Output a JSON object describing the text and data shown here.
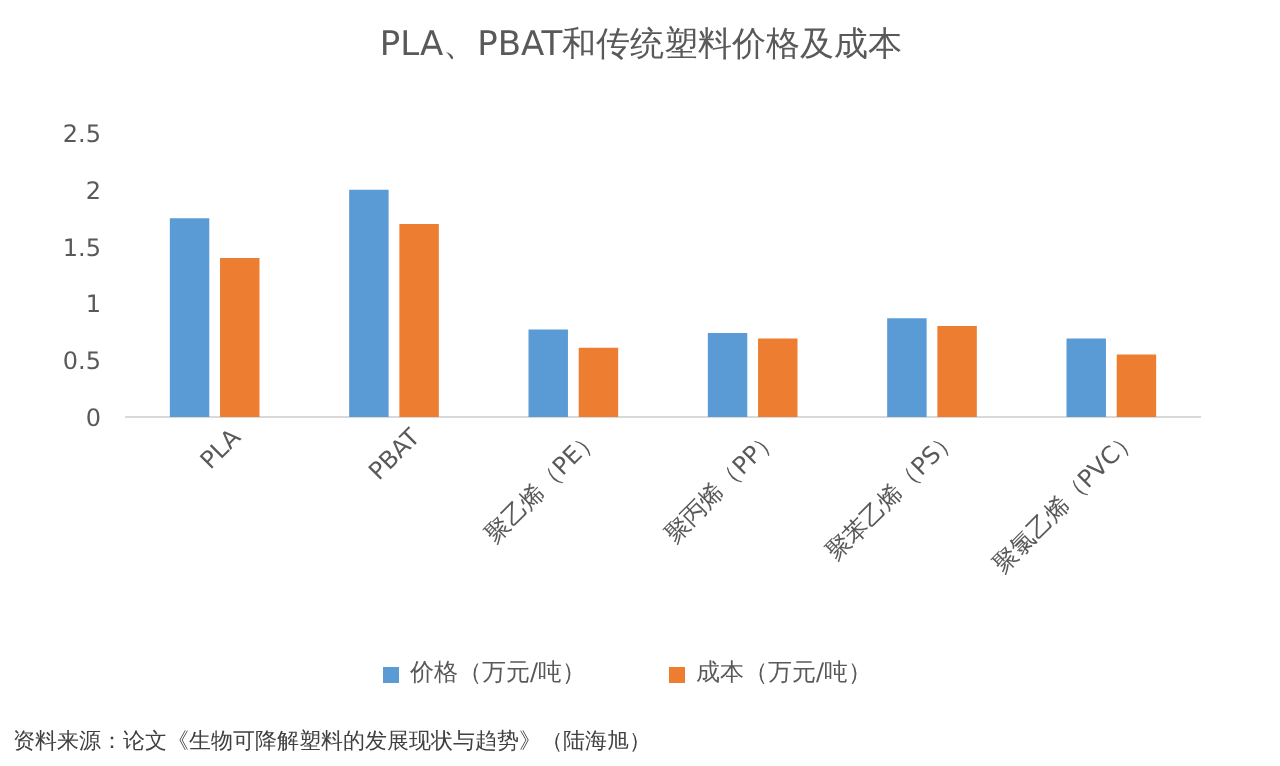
{
  "chart_data": {
    "type": "bar",
    "title": "PLA、PBAT和传统塑料价格及成本",
    "categories": [
      "PLA",
      "PBAT",
      "聚乙烯（PE）",
      "聚丙烯（PP）",
      "聚苯乙烯（PS）",
      "聚氯乙烯（PVC）"
    ],
    "series": [
      {
        "name": "价格（万元/吨）",
        "color": "#5b9bd5",
        "values": [
          1.75,
          2.0,
          0.77,
          0.74,
          0.87,
          0.69
        ]
      },
      {
        "name": "成本（万元/吨）",
        "color": "#ed7d31",
        "values": [
          1.4,
          1.7,
          0.61,
          0.69,
          0.8,
          0.55
        ]
      }
    ],
    "ylim": [
      0,
      2.5
    ],
    "yticks": [
      0,
      0.5,
      1,
      1.5,
      2,
      2.5
    ],
    "grid": false,
    "legend": "bottom",
    "annotations": [
      "资料来源：论文《生物可降解塑料的发展现状与趋势》（陆海旭）"
    ]
  }
}
